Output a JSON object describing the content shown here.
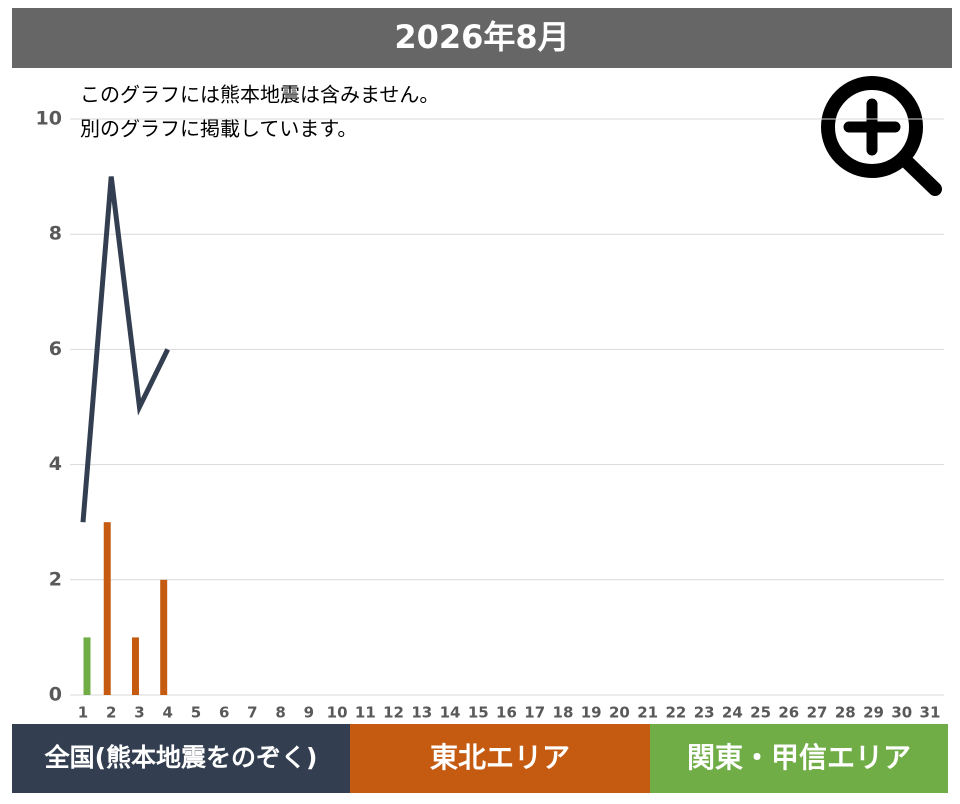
{
  "chart_data": {
    "type": "bar",
    "title": "2026年8月",
    "note": [
      "このグラフには熊本地震は含みません。",
      "別のグラフに掲載しています。"
    ],
    "categories": [
      1,
      2,
      3,
      4,
      5,
      6,
      7,
      8,
      9,
      10,
      11,
      12,
      13,
      14,
      15,
      16,
      17,
      18,
      19,
      20,
      21,
      22,
      23,
      24,
      25,
      26,
      27,
      28,
      29,
      30,
      31
    ],
    "series": [
      {
        "name": "全国(熊本地震をのぞく)",
        "color": "#333f50",
        "type": "line",
        "values": [
          3,
          9,
          5,
          6,
          null,
          null,
          null,
          null,
          null,
          null,
          null,
          null,
          null,
          null,
          null,
          null,
          null,
          null,
          null,
          null,
          null,
          null,
          null,
          null,
          null,
          null,
          null,
          null,
          null,
          null,
          null
        ]
      },
      {
        "name": "東北エリア",
        "color": "#c55a11",
        "type": "bar",
        "values": [
          0,
          3,
          1,
          2,
          null,
          null,
          null,
          null,
          null,
          null,
          null,
          null,
          null,
          null,
          null,
          null,
          null,
          null,
          null,
          null,
          null,
          null,
          null,
          null,
          null,
          null,
          null,
          null,
          null,
          null,
          null
        ]
      },
      {
        "name": "関東・甲信エリア",
        "color": "#70ad47",
        "type": "bar",
        "values": [
          1,
          0,
          0,
          0,
          null,
          null,
          null,
          null,
          null,
          null,
          null,
          null,
          null,
          null,
          null,
          null,
          null,
          null,
          null,
          null,
          null,
          null,
          null,
          null,
          null,
          null,
          null,
          null,
          null,
          null,
          null
        ]
      }
    ],
    "ylim": [
      0,
      10
    ],
    "yticks": [
      0,
      2,
      4,
      6,
      8,
      10
    ],
    "grid": true
  }
}
